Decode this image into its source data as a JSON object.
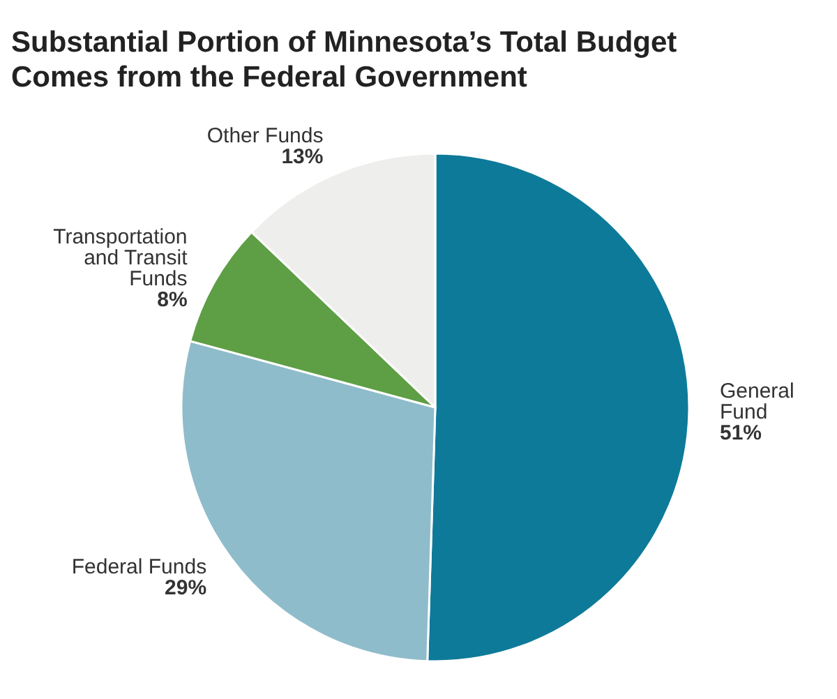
{
  "chart_data": {
    "type": "pie",
    "title": "Substantial Portion of Minnesota’s Total Budget Comes from the Federal Government",
    "categories": [
      "General Fund",
      "Federal Funds",
      "Transportation and Transit Funds",
      "Other Funds"
    ],
    "values": [
      51,
      29,
      8,
      13
    ],
    "value_labels": [
      "51%",
      "29%",
      "8%",
      "13%"
    ],
    "colors": [
      "#0e7a99",
      "#8fbccb",
      "#5e9e45",
      "#eeeeec"
    ]
  }
}
